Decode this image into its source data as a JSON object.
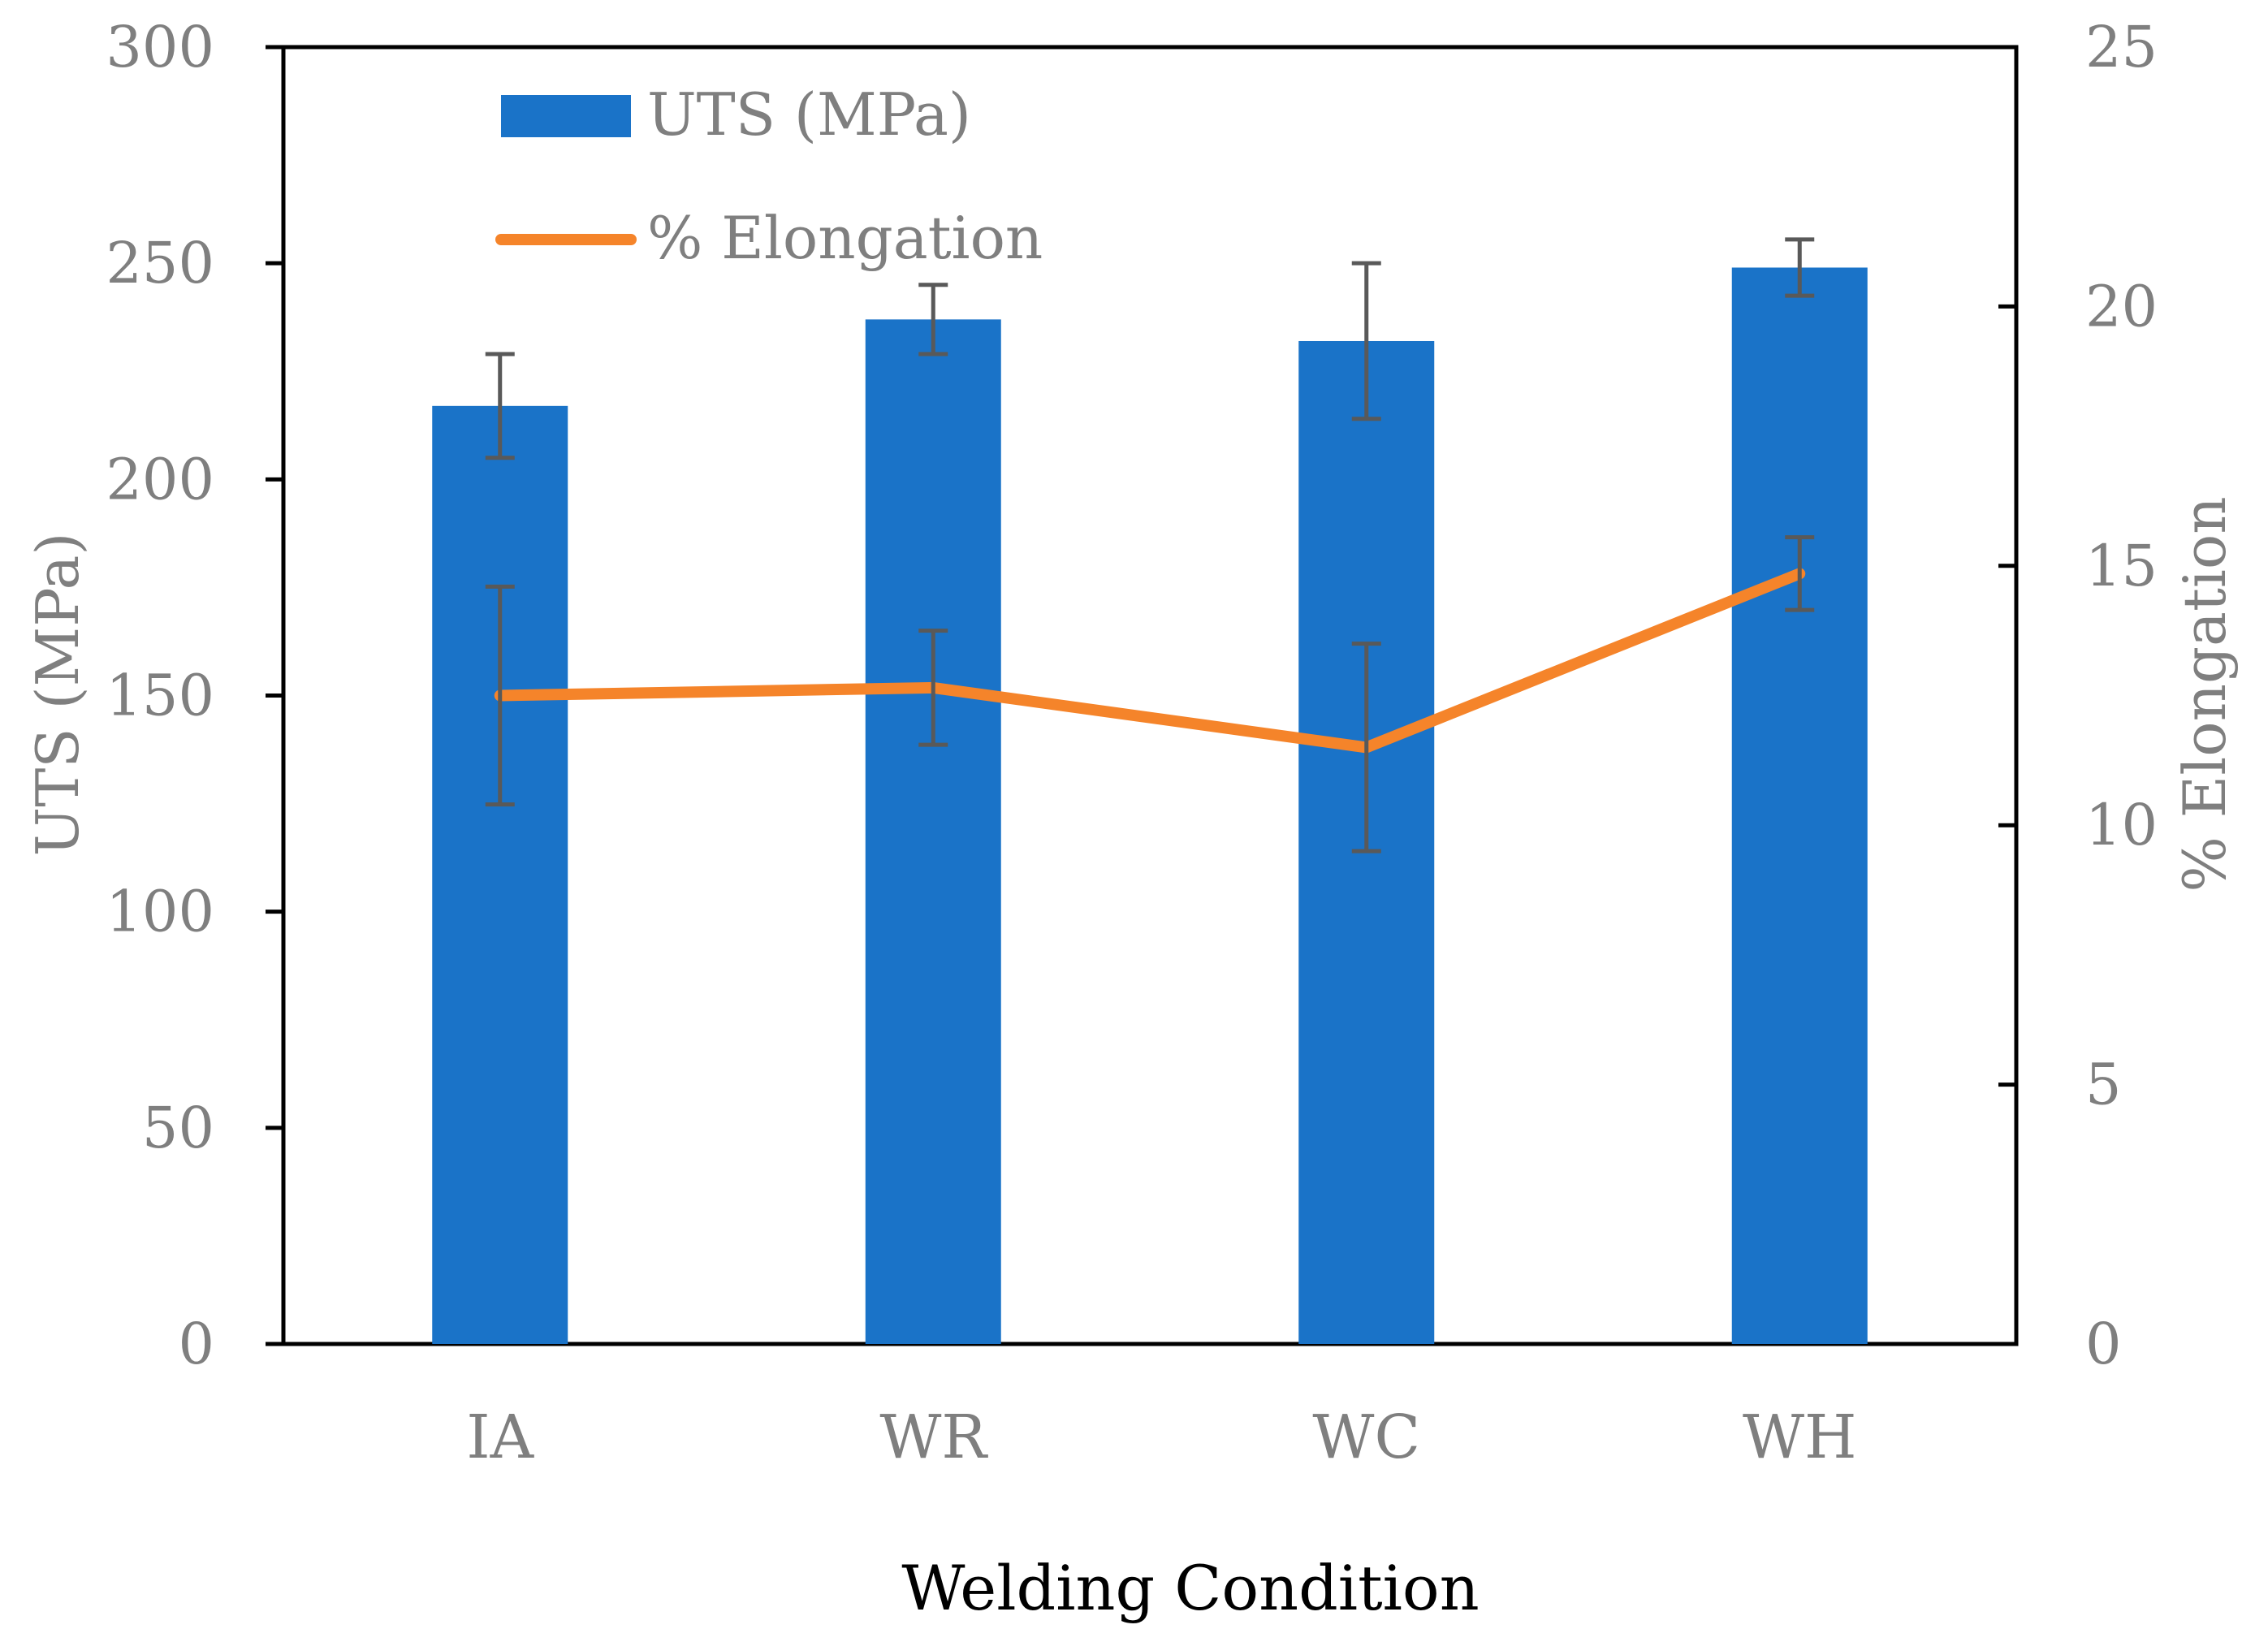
{
  "chart_data": {
    "type": "bar+line",
    "categories": [
      "IA",
      "WR",
      "WC",
      "WH"
    ],
    "xlabel": "Welding Condition",
    "series": [
      {
        "name": "UTS (MPa)",
        "type": "bar",
        "axis": "left",
        "color": "#1a73c8",
        "values": [
          217,
          237,
          232,
          249
        ],
        "error": [
          12,
          8,
          18,
          6.5
        ]
      },
      {
        "name": "% Elongation",
        "type": "line",
        "axis": "right",
        "color": "#f5842a",
        "values": [
          12.5,
          12.65,
          11.5,
          14.85
        ],
        "error": [
          2.1,
          1.1,
          2.0,
          0.7
        ]
      }
    ],
    "y_left": {
      "label": "UTS (MPa)",
      "min": 0,
      "max": 300,
      "ticks": [
        0,
        50,
        100,
        150,
        200,
        250,
        300
      ]
    },
    "y_right": {
      "label": "% Elongation",
      "min": 0,
      "max": 25,
      "ticks": [
        0,
        5,
        10,
        15,
        20,
        25
      ]
    },
    "legend_position": "top-left",
    "grid": false,
    "error_bar_color": "#595959"
  }
}
